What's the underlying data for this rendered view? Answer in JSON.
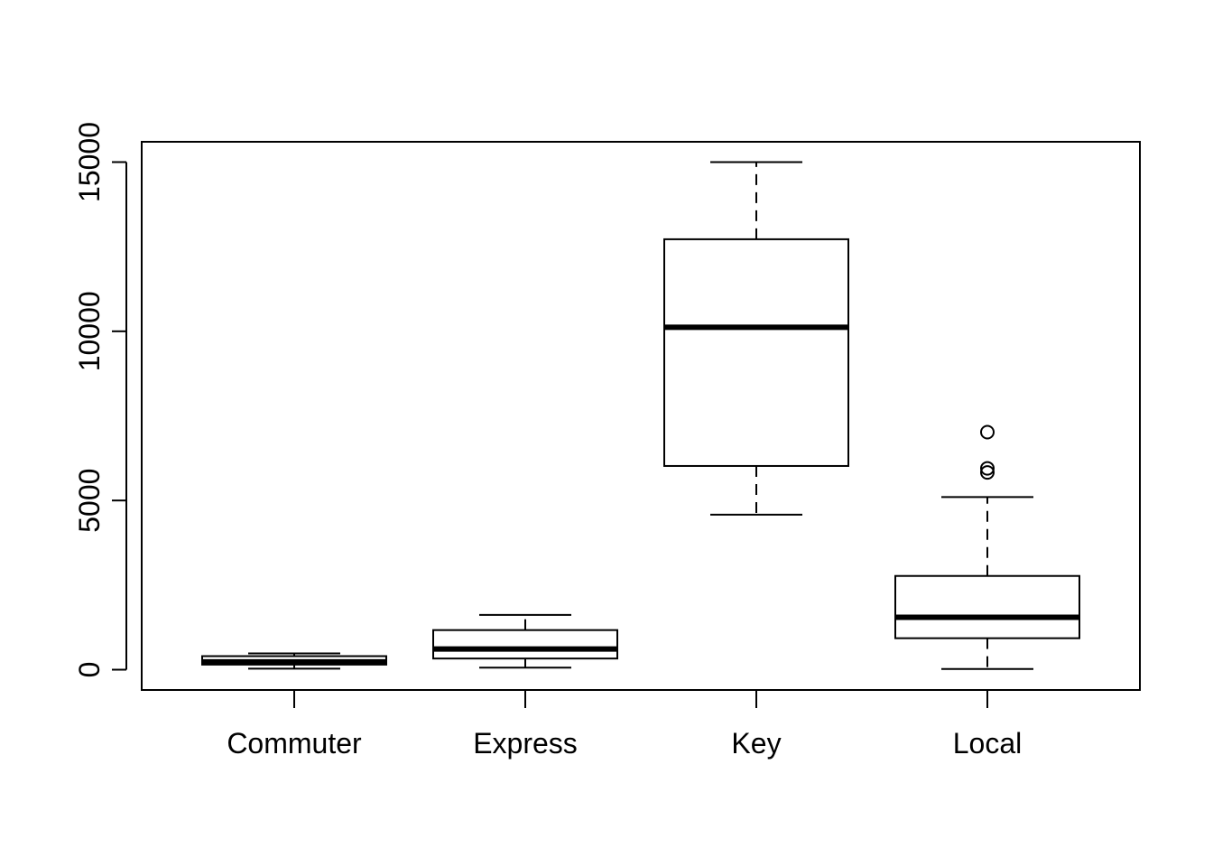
{
  "chart_data": {
    "type": "boxplot",
    "title": "",
    "xlabel": "",
    "ylabel": "",
    "ylim": [
      -600,
      15600
    ],
    "yticks": [
      0,
      5000,
      10000,
      15000
    ],
    "ytick_labels": [
      "0",
      "5000",
      "10000",
      "15000"
    ],
    "categories": [
      "Commuter",
      "Express",
      "Key",
      "Local"
    ],
    "boxes": [
      {
        "name": "Commuter",
        "whisker_low": 30,
        "q1": 150,
        "median": 230,
        "q3": 400,
        "whisker_high": 480,
        "outliers": []
      },
      {
        "name": "Express",
        "whisker_low": 60,
        "q1": 330,
        "median": 610,
        "q3": 1170,
        "whisker_high": 1620,
        "outliers": []
      },
      {
        "name": "Key",
        "whisker_low": 4580,
        "q1": 6020,
        "median": 10120,
        "q3": 12720,
        "whisker_high": 15000,
        "outliers": []
      },
      {
        "name": "Local",
        "whisker_low": 20,
        "q1": 930,
        "median": 1550,
        "q3": 2770,
        "whisker_high": 5100,
        "outliers": [
          5830,
          5950,
          7020
        ]
      }
    ],
    "grid": false,
    "colors": {
      "line": "#000000",
      "box_fill": "#ffffff",
      "background": "#ffffff"
    }
  }
}
